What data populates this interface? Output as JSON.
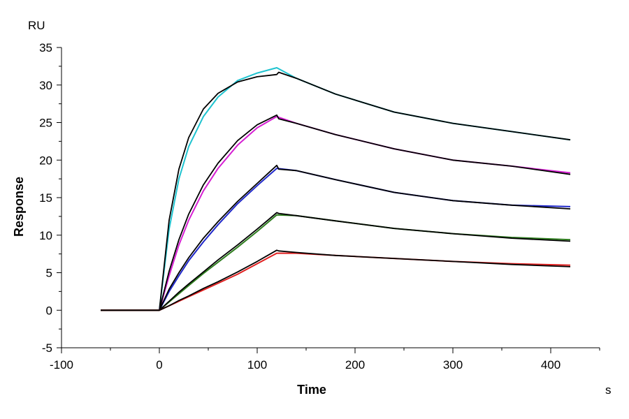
{
  "chart_data": {
    "type": "line",
    "title": "",
    "xlabel": "Time",
    "ylabel": "Response",
    "x_unit": "s",
    "y_unit": "RU",
    "xlim": [
      -100,
      450
    ],
    "ylim": [
      -5,
      35
    ],
    "xticks": [
      -100,
      0,
      100,
      200,
      300,
      400
    ],
    "yticks": [
      -5,
      0,
      5,
      10,
      15,
      20,
      25,
      30,
      35
    ],
    "grid": false,
    "legend": "none",
    "series": [
      {
        "color": "#1fc3cf",
        "x": [
          -60,
          0,
          10,
          20,
          30,
          45,
          60,
          80,
          100,
          120,
          140,
          180,
          240,
          300,
          360,
          420
        ],
        "y": [
          0,
          0,
          10.8,
          17.5,
          21.8,
          25.8,
          28.4,
          30.6,
          31.6,
          32.3,
          30.9,
          28.8,
          26.4,
          24.9,
          23.8,
          22.7
        ]
      },
      {
        "color": "#000000",
        "x": [
          -60,
          0,
          10,
          20,
          30,
          45,
          60,
          80,
          100,
          120,
          122,
          140,
          180,
          240,
          300,
          360,
          420
        ],
        "y": [
          0,
          0,
          12.0,
          18.8,
          23.0,
          26.8,
          28.9,
          30.4,
          31.1,
          31.4,
          31.7,
          30.9,
          28.8,
          26.4,
          24.9,
          23.8,
          22.7
        ]
      },
      {
        "color": "#d61fd3",
        "x": [
          -60,
          0,
          10,
          20,
          30,
          45,
          60,
          80,
          100,
          120,
          140,
          180,
          240,
          300,
          360,
          420
        ],
        "y": [
          0,
          0,
          4.6,
          8.7,
          12.0,
          15.9,
          18.9,
          22.0,
          24.3,
          25.8,
          24.9,
          23.4,
          21.5,
          20.0,
          19.2,
          18.3
        ]
      },
      {
        "color": "#000000",
        "x": [
          -60,
          0,
          10,
          20,
          30,
          45,
          60,
          80,
          100,
          120,
          122,
          140,
          180,
          240,
          300,
          360,
          420
        ],
        "y": [
          0,
          0,
          5.2,
          9.4,
          12.8,
          16.7,
          19.6,
          22.6,
          24.7,
          26.0,
          25.5,
          24.9,
          23.4,
          21.5,
          20.0,
          19.2,
          18.1
        ]
      },
      {
        "color": "#1f27c9",
        "x": [
          -60,
          0,
          10,
          20,
          30,
          45,
          60,
          80,
          100,
          120,
          140,
          180,
          240,
          300,
          360,
          420
        ],
        "y": [
          0,
          0,
          2.5,
          4.6,
          6.6,
          9.1,
          11.4,
          14.2,
          16.6,
          18.9,
          18.6,
          17.4,
          15.7,
          14.6,
          14.0,
          13.8
        ]
      },
      {
        "color": "#000000",
        "x": [
          -60,
          0,
          10,
          20,
          30,
          45,
          60,
          80,
          100,
          120,
          122,
          140,
          180,
          240,
          300,
          360,
          420
        ],
        "y": [
          0,
          0,
          2.8,
          5.0,
          7.0,
          9.6,
          11.8,
          14.5,
          16.9,
          19.3,
          18.8,
          18.6,
          17.4,
          15.7,
          14.6,
          14.0,
          13.5
        ]
      },
      {
        "color": "#2e7d1e",
        "x": [
          -60,
          0,
          10,
          20,
          30,
          45,
          60,
          80,
          100,
          120,
          140,
          180,
          240,
          300,
          360,
          420
        ],
        "y": [
          0,
          0,
          1.1,
          2.2,
          3.3,
          4.9,
          6.4,
          8.4,
          10.5,
          12.7,
          12.6,
          11.9,
          10.9,
          10.2,
          9.7,
          9.4
        ]
      },
      {
        "color": "#000000",
        "x": [
          -60,
          0,
          10,
          20,
          30,
          45,
          60,
          80,
          100,
          120,
          122,
          140,
          180,
          240,
          300,
          360,
          420
        ],
        "y": [
          0,
          0,
          1.2,
          2.4,
          3.5,
          5.1,
          6.7,
          8.7,
          10.8,
          13.0,
          12.9,
          12.6,
          11.9,
          10.9,
          10.2,
          9.6,
          9.2
        ]
      },
      {
        "color": "#e01f1f",
        "x": [
          -60,
          0,
          10,
          20,
          30,
          45,
          60,
          80,
          100,
          120,
          140,
          180,
          240,
          300,
          360,
          420
        ],
        "y": [
          0,
          0,
          0.6,
          1.2,
          1.8,
          2.7,
          3.6,
          4.8,
          6.2,
          7.6,
          7.6,
          7.3,
          6.9,
          6.5,
          6.2,
          6.0
        ]
      },
      {
        "color": "#000000",
        "x": [
          -60,
          0,
          10,
          20,
          30,
          45,
          60,
          80,
          100,
          120,
          122,
          140,
          180,
          240,
          300,
          360,
          420
        ],
        "y": [
          0,
          0,
          0.6,
          1.3,
          1.9,
          2.9,
          3.8,
          5.1,
          6.5,
          8.0,
          7.9,
          7.7,
          7.3,
          6.9,
          6.5,
          6.1,
          5.8
        ]
      }
    ]
  }
}
